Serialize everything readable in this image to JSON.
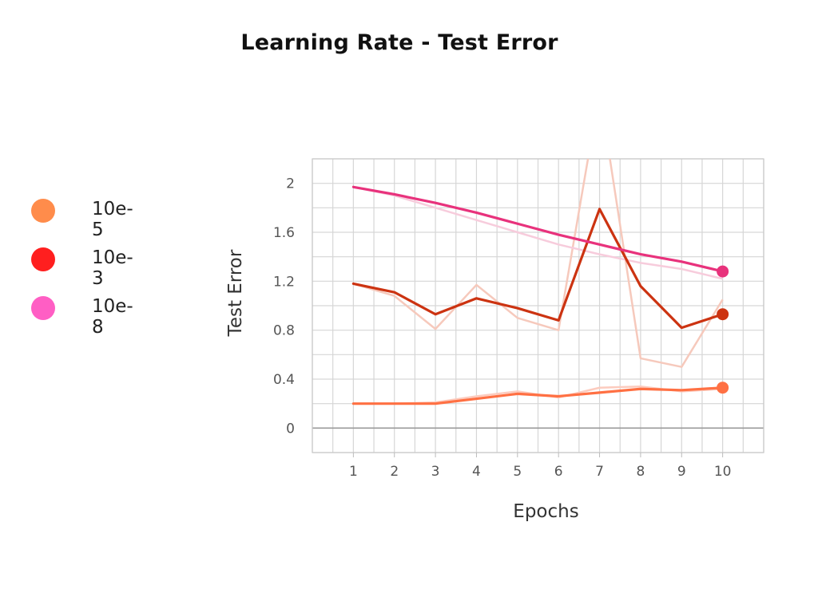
{
  "chart_data": {
    "type": "line",
    "title": "Learning Rate - Test Error",
    "xlabel": "Epochs",
    "ylabel": "Test Error",
    "x": [
      1,
      2,
      3,
      4,
      5,
      6,
      7,
      8,
      9,
      10
    ],
    "x_ticks": [
      "1",
      "2",
      "3",
      "4",
      "5",
      "6",
      "7",
      "8",
      "9",
      "10"
    ],
    "y_ticks": [
      "0",
      "0.4",
      "0.8",
      "1.2",
      "1.6",
      "2"
    ],
    "y_tick_values": [
      0,
      0.4,
      0.8,
      1.2,
      1.6,
      2.0
    ],
    "xlim": [
      0,
      11
    ],
    "ylim": [
      -0.2,
      2.2
    ],
    "grid": true,
    "legend_position": "left",
    "series": [
      {
        "name": "10e-5",
        "legend_color": "#FF8C4B",
        "line_color": "#FF7043",
        "raw_color": "#FCCBBE",
        "values": [
          0.2,
          0.2,
          0.2,
          0.24,
          0.28,
          0.26,
          0.29,
          0.32,
          0.31,
          0.33
        ],
        "raw_values": [
          0.2,
          0.2,
          0.21,
          0.26,
          0.3,
          0.25,
          0.33,
          0.34,
          0.3,
          0.32
        ]
      },
      {
        "name": "10e-3",
        "legend_color": "#FF1F1F",
        "line_color": "#CC3311",
        "raw_color": "#F6C9BC",
        "values": [
          1.18,
          1.11,
          0.93,
          1.06,
          0.98,
          0.88,
          1.79,
          1.16,
          0.82,
          0.93
        ],
        "raw_values": [
          1.18,
          1.08,
          0.81,
          1.17,
          0.9,
          0.8,
          2.75,
          0.57,
          0.5,
          1.05
        ]
      },
      {
        "name": "10e-8",
        "legend_color": "#FF5EC4",
        "line_color": "#E8327C",
        "raw_color": "#F7CCDC",
        "values": [
          1.97,
          1.91,
          1.84,
          1.76,
          1.67,
          1.58,
          1.5,
          1.42,
          1.36,
          1.28
        ],
        "raw_values": [
          1.97,
          1.9,
          1.8,
          1.7,
          1.6,
          1.5,
          1.42,
          1.35,
          1.3,
          1.22
        ]
      }
    ]
  }
}
